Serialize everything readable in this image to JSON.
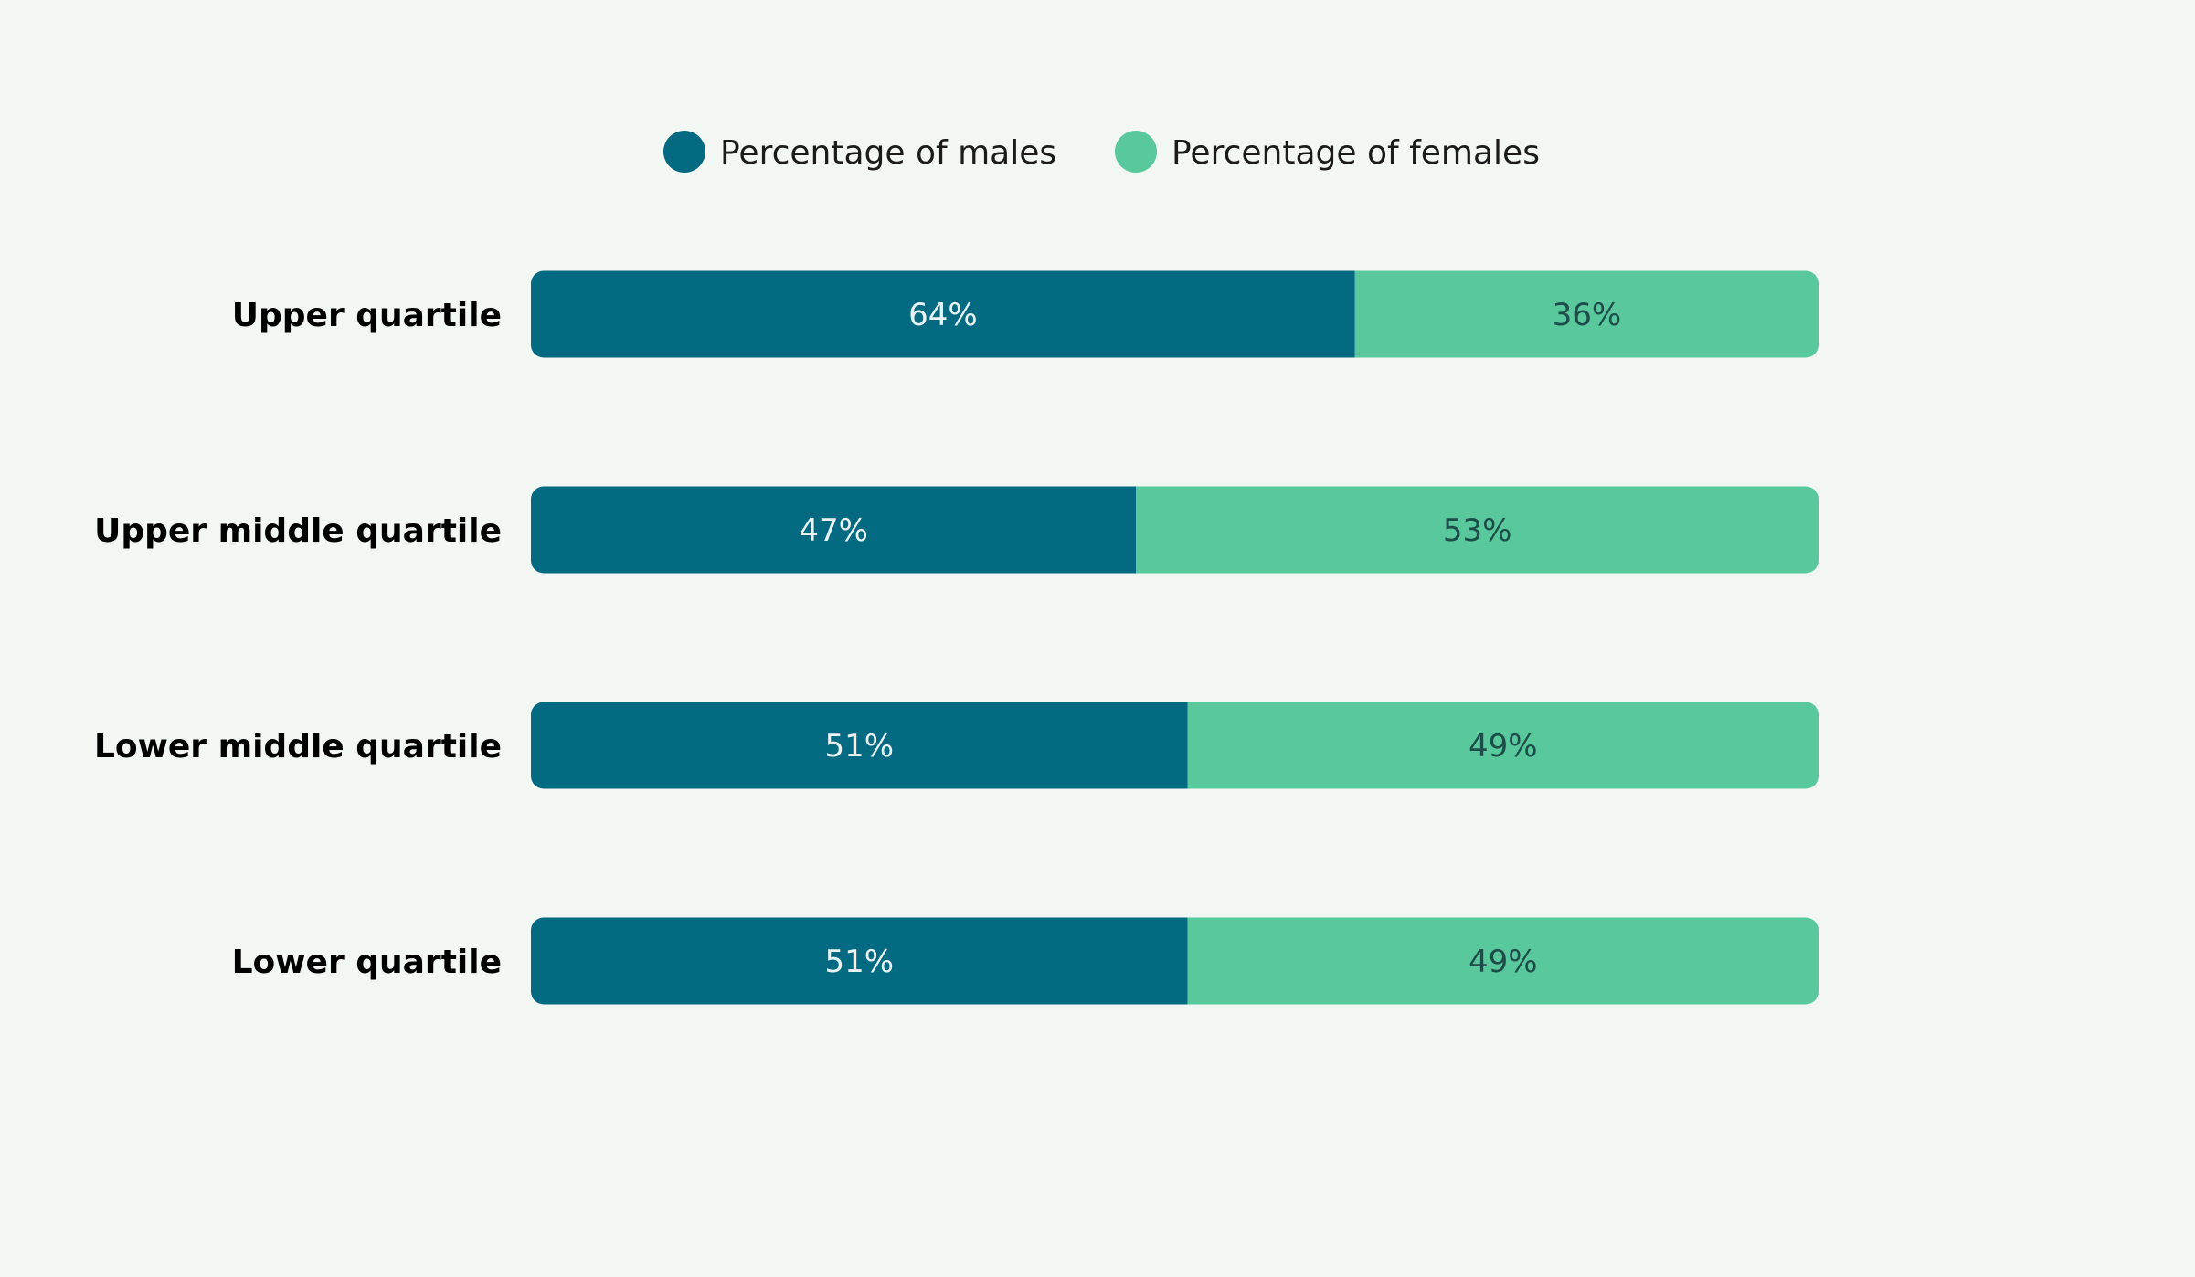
{
  "chart_data": {
    "type": "bar",
    "stacked": true,
    "orientation": "horizontal",
    "categories": [
      "Upper quartile",
      "Upper middle quartile",
      "Lower middle quartile",
      "Lower quartile"
    ],
    "series": [
      {
        "name": "Percentage of males",
        "values": [
          64,
          47,
          51,
          51
        ],
        "color": "#036a82",
        "label_color": "#e9f3f4"
      },
      {
        "name": "Percentage of females",
        "values": [
          36,
          53,
          49,
          49
        ],
        "color": "#5ac89d",
        "label_color": "#1d4d48"
      }
    ],
    "value_suffix": "%",
    "xlim": [
      0,
      100
    ],
    "title": "",
    "xlabel": "",
    "ylabel": "",
    "grid": false,
    "legend": "top-center"
  }
}
